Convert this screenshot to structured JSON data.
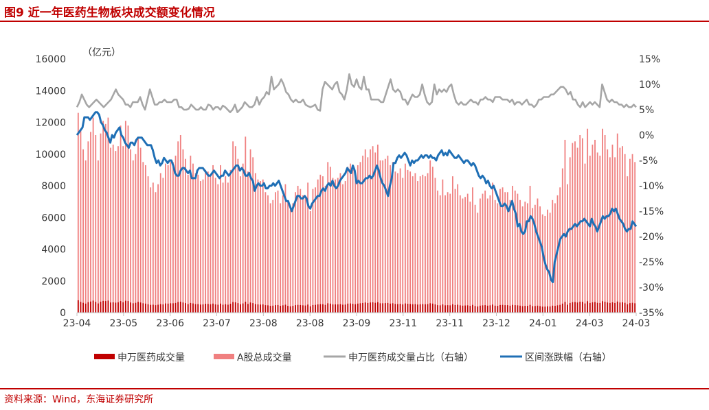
{
  "figure": {
    "title": "图9  近一年医药生物板块成交额变化情况",
    "source": "资料来源：Wind，东海证券研究所"
  },
  "colors": {
    "sw_volume": "#c00000",
    "a_volume": "#f08080",
    "ratio": "#a6a6a6",
    "change": "#1f6fb5",
    "accent": "#c00000"
  },
  "chart_data": {
    "type": "bar",
    "title": "近一年医药生物板块成交额变化情况",
    "y_unit_label": "（亿元）",
    "ylim": [
      0,
      16000
    ],
    "y_ticks": [
      0,
      2000,
      4000,
      6000,
      8000,
      10000,
      12000,
      14000,
      16000
    ],
    "y2lim": [
      -35,
      15
    ],
    "y2_ticks": [
      "15%",
      "10%",
      "5%",
      "0%",
      "-5%",
      "-10%",
      "-15%",
      "-20%",
      "-25%",
      "-30%",
      "-35%"
    ],
    "x_tick_labels": [
      "23-04",
      "23-05",
      "23-06",
      "23-07",
      "23-08",
      "23-08",
      "23-09",
      "23-11",
      "23-11",
      "23-12",
      "24-01",
      "24-03",
      "24-03"
    ],
    "legend": [
      "申万医药成交量",
      "A股总成交量",
      "申万医药成交量占比（右轴）",
      "区间涨跌幅（右轴）"
    ],
    "legend_position": "bottom",
    "series": [
      {
        "name": "A股总成交量",
        "axis": "left",
        "type": "bar",
        "values": [
          12600,
          11500,
          10300,
          9600,
          10800,
          11400,
          12300,
          11200,
          9600,
          11300,
          12100,
          11900,
          12300,
          10400,
          10600,
          10200,
          10500,
          11800,
          10500,
          12100,
          11800,
          10300,
          9600,
          10000,
          11000,
          10400,
          9500,
          9300,
          8600,
          7900,
          8200,
          7600,
          8100,
          8800,
          8500,
          9400,
          9300,
          9500,
          9500,
          9900,
          10800,
          11200,
          10300,
          9700,
          8700,
          9900,
          9400,
          8800,
          8700,
          8300,
          8400,
          9000,
          8900,
          8600,
          9300,
          8500,
          8100,
          9300,
          8200,
          8600,
          8200,
          9000,
          10800,
          10500,
          9700,
          8600,
          9400,
          11100,
          8900,
          10300,
          9800,
          8800,
          8400,
          8300,
          8400,
          7600,
          7400,
          6900,
          7100,
          7600,
          7700,
          6900,
          7400,
          8100,
          7000,
          6500,
          6900,
          7600,
          8000,
          7800,
          7400,
          7200,
          8200,
          6400,
          7800,
          7900,
          8400,
          8700,
          8600,
          8000,
          9500,
          9200,
          8500,
          8400,
          8500,
          8800,
          8100,
          8300,
          9200,
          9400,
          9000,
          8600,
          9300,
          9500,
          9900,
          10300,
          9800,
          10300,
          10500,
          10100,
          10600,
          9600,
          9600,
          9700,
          9900,
          9300,
          9500,
          8900,
          8800,
          9100,
          8500,
          9400,
          9000,
          8900,
          8600,
          8800,
          8300,
          8600,
          8700,
          8600,
          8800,
          9600,
          9200,
          8500,
          7700,
          7400,
          8400,
          7400,
          7600,
          7500,
          8600,
          7800,
          8100,
          7400,
          7200,
          7300,
          7500,
          7000,
          7900,
          6800,
          6300,
          7200,
          7500,
          7700,
          7200,
          7400,
          8200,
          7100,
          6900,
          7800,
          7900,
          7600,
          7600,
          7100,
          8000,
          7700,
          7500,
          7100,
          6700,
          7000,
          6900,
          8000,
          6600,
          6800,
          7200,
          6700,
          6200,
          6100,
          6500,
          6300,
          7100,
          6900,
          7400,
          7900,
          9100,
          10900,
          8100,
          9800,
          10700,
          10800,
          10400,
          11200,
          11000,
          9400,
          11600,
          9900,
          10600,
          10900,
          10100,
          9900,
          11600,
          11200,
          10300,
          9800,
          10600,
          9800,
          11300,
          10400,
          10500,
          10000,
          8600,
          9700,
          10000,
          9500
        ]
      },
      {
        "name": "申万医药成交量",
        "axis": "left",
        "type": "bar",
        "values": [
          780,
          680,
          620,
          570,
          660,
          700,
          760,
          680,
          580,
          690,
          740,
          730,
          760,
          640,
          650,
          630,
          650,
          730,
          650,
          750,
          730,
          640,
          590,
          620,
          680,
          640,
          590,
          570,
          530,
          490,
          500,
          470,
          500,
          540,
          520,
          580,
          570,
          590,
          590,
          610,
          670,
          690,
          640,
          600,
          540,
          610,
          580,
          540,
          540,
          510,
          520,
          560,
          550,
          530,
          570,
          520,
          500,
          570,
          500,
          530,
          500,
          560,
          670,
          650,
          600,
          530,
          580,
          690,
          550,
          640,
          600,
          540,
          520,
          510,
          520,
          470,
          460,
          430,
          440,
          470,
          480,
          430,
          460,
          500,
          430,
          400,
          430,
          470,
          490,
          480,
          460,
          450,
          510,
          400,
          480,
          490,
          520,
          540,
          530,
          490,
          590,
          570,
          520,
          520,
          520,
          540,
          500,
          510,
          570,
          580,
          560,
          530,
          570,
          590,
          610,
          640,
          610,
          640,
          650,
          620,
          660,
          590,
          590,
          600,
          610,
          570,
          590,
          550,
          540,
          560,
          520,
          580,
          560,
          550,
          530,
          540,
          510,
          530,
          540,
          530,
          540,
          590,
          570,
          520,
          470,
          460,
          520,
          460,
          470,
          460,
          530,
          480,
          500,
          460,
          440,
          450,
          460,
          430,
          490,
          420,
          390,
          440,
          460,
          470,
          440,
          460,
          510,
          440,
          430,
          480,
          490,
          470,
          470,
          440,
          490,
          470,
          460,
          440,
          410,
          430,
          430,
          490,
          410,
          420,
          440,
          410,
          380,
          380,
          400,
          390,
          440,
          430,
          460,
          490,
          570,
          680,
          500,
          610,
          660,
          670,
          640,
          690,
          680,
          580,
          720,
          610,
          650,
          670,
          620,
          610,
          720,
          690,
          640,
          610,
          650,
          610,
          700,
          640,
          650,
          620,
          530,
          600,
          620,
          590
        ]
      },
      {
        "name": "申万医药成交量占比（右轴）",
        "axis": "right",
        "type": "line",
        "values": [
          5.5,
          6.5,
          8,
          7,
          6,
          5.5,
          6,
          6.5,
          7,
          6.5,
          6,
          5.5,
          6,
          6.5,
          7,
          8,
          9,
          8,
          7.5,
          7,
          6,
          6,
          5.5,
          6.5,
          6.5,
          6.5,
          7.5,
          6,
          5,
          7,
          9,
          7.5,
          6,
          6,
          6.5,
          6.5,
          7,
          6.5,
          6.5,
          6.5,
          7,
          7,
          5.5,
          5.5,
          5,
          5,
          5.2,
          6,
          5.5,
          5,
          5,
          5.5,
          5,
          5,
          6,
          5.8,
          5,
          5.5,
          5.5,
          5,
          5.8,
          5.5,
          5,
          4.5,
          5,
          6,
          4.5,
          5,
          5.5,
          6.5,
          6,
          5.5,
          5.5,
          6,
          7.5,
          6,
          7,
          7.5,
          8.5,
          8,
          11.5,
          9,
          9.5,
          10,
          11,
          10,
          8.5,
          8,
          7,
          6.5,
          7,
          6.5,
          6.5,
          7,
          6,
          5.7,
          5.5,
          5.7,
          6,
          5,
          4.8,
          9,
          10.5,
          10,
          9.5,
          9,
          10,
          10.5,
          8.5,
          8,
          7,
          9,
          12,
          10,
          9.5,
          11,
          9.5,
          9,
          11.5,
          9,
          9,
          7,
          7,
          7,
          7,
          6.5,
          6.5,
          8,
          9.5,
          11,
          9,
          8.5,
          9,
          8.5,
          7,
          7,
          6,
          7,
          8,
          7.5,
          7.5,
          8,
          10,
          8,
          6.5,
          6,
          6.5,
          10,
          8,
          9,
          8.5,
          9,
          8.5,
          9.5,
          10,
          8,
          6.5,
          6,
          6.5,
          6,
          6,
          6.5,
          7,
          6.5,
          6.5,
          6,
          7,
          7,
          7.5,
          7,
          7,
          6.5,
          7.5,
          7.5,
          7.5,
          7,
          7,
          7,
          6.5,
          7,
          6,
          6.5,
          6.5,
          6,
          6.5,
          7,
          6,
          6,
          5.5,
          6,
          7,
          7,
          7.5,
          7.5,
          7.5,
          8,
          8,
          8.5,
          9,
          9.5,
          9.5,
          9,
          8,
          8.5,
          7,
          7,
          6,
          5.5,
          6.5,
          5.5,
          6,
          6.5,
          6,
          6.5,
          6,
          5.5,
          10,
          8.5,
          7,
          6.5,
          7,
          6.5,
          6.5,
          6,
          6,
          5.5,
          6,
          5.5,
          5.5,
          6,
          5.5
        ]
      },
      {
        "name": "区间涨跌幅（右轴）",
        "axis": "right",
        "type": "line",
        "values": [
          0,
          0.5,
          1,
          1.5,
          3.5,
          3.5,
          3.5,
          3,
          3.5,
          4,
          4.5,
          4.5,
          4,
          2.5,
          2,
          1,
          0.5,
          -0.5,
          -1.5,
          0,
          -0.5,
          0.5,
          1,
          1.5,
          0,
          -0.5,
          -1.5,
          -2,
          -2.5,
          -1.5,
          -1.5,
          -2,
          -1,
          -0.5,
          -0.5,
          -0.5,
          -1,
          -1.5,
          -2,
          -2,
          -2,
          -3,
          -4.5,
          -5.5,
          -5,
          -6,
          -5.5,
          -4.5,
          -5,
          -5.5,
          -5,
          -5,
          -6,
          -7.5,
          -8,
          -8,
          -7,
          -6.5,
          -6.5,
          -7,
          -7.5,
          -7,
          -8.5,
          -8.5,
          -8.5,
          -7,
          -6.5,
          -6.5,
          -6.5,
          -7,
          -7.5,
          -8,
          -8,
          -7.5,
          -7,
          -7.5,
          -8,
          -8.5,
          -8,
          -8,
          -7,
          -7.5,
          -8,
          -7.5,
          -7,
          -6.5,
          -6,
          -6,
          -7,
          -6.5,
          -7,
          -8,
          -8,
          -7.5,
          -8.5,
          -9,
          -11,
          -10,
          -9.5,
          -10,
          -10,
          -9.5,
          -10.5,
          -10.5,
          -10,
          -10,
          -9.5,
          -10,
          -9.5,
          -9,
          -10,
          -11,
          -12,
          -13,
          -13,
          -14,
          -15,
          -14,
          -13,
          -12,
          -12,
          -12.5,
          -12.5,
          -12,
          -12.5,
          -14,
          -14.5,
          -13.5,
          -13,
          -12.5,
          -12,
          -12,
          -11,
          -10.5,
          -11,
          -10,
          -9.5,
          -10,
          -9,
          -10,
          -10.5,
          -10,
          -9,
          -8.5,
          -8,
          -7.5,
          -6.5,
          -7,
          -7.5,
          -6,
          -7,
          -9.5,
          -9,
          -9.5,
          -9.5,
          -9,
          -8.5,
          -8.5,
          -8,
          -8.5,
          -8,
          -7,
          -6,
          -7,
          -8.5,
          -9.5,
          -10,
          -11,
          -12,
          -10,
          -8.5,
          -5.5,
          -5.5,
          -4.5,
          -4,
          -4.5,
          -4,
          -3.5,
          -4,
          -5,
          -6,
          -5,
          -5.5,
          -5,
          -5,
          -4.5,
          -4,
          -4.5,
          -4,
          -4,
          -4.5,
          -4,
          -4.5,
          -4.5,
          -5,
          -4,
          -3.5,
          -3,
          -4,
          -3.5,
          -4,
          -3,
          -3.5,
          -4,
          -4.5,
          -4.5,
          -4,
          -4.5,
          -5,
          -5.5,
          -5,
          -5,
          -5.5,
          -6,
          -5.5,
          -6,
          -7,
          -8,
          -8.5,
          -8,
          -8.5,
          -9.5,
          -9,
          -10,
          -10.5,
          -10,
          -11,
          -12,
          -13,
          -14,
          -14,
          -13.5,
          -14,
          -15,
          -14,
          -13,
          -14.5,
          -15.5,
          -18,
          -17.5,
          -19,
          -19.5,
          -19,
          -17,
          -17,
          -16,
          -16.5,
          -17.5,
          -19,
          -20,
          -21,
          -22,
          -24,
          -25.5,
          -26.5,
          -27,
          -28.5,
          -29,
          -25,
          -23.5,
          -22,
          -20.5,
          -20,
          -19.5,
          -20,
          -19,
          -18.5,
          -18.5,
          -18,
          -17.5,
          -18,
          -17.5,
          -17,
          -17,
          -16.5,
          -17,
          -17.5,
          -18,
          -16.5,
          -17.5,
          -18,
          -19,
          -18,
          -17,
          -16,
          -16.5,
          -16,
          -16,
          -15.5,
          -14.5,
          -15,
          -14.5,
          -15.5,
          -16.5,
          -17,
          -17.5,
          -18.5,
          -19,
          -18.5,
          -18.5,
          -17,
          -17.5,
          -18
        ]
      }
    ]
  }
}
